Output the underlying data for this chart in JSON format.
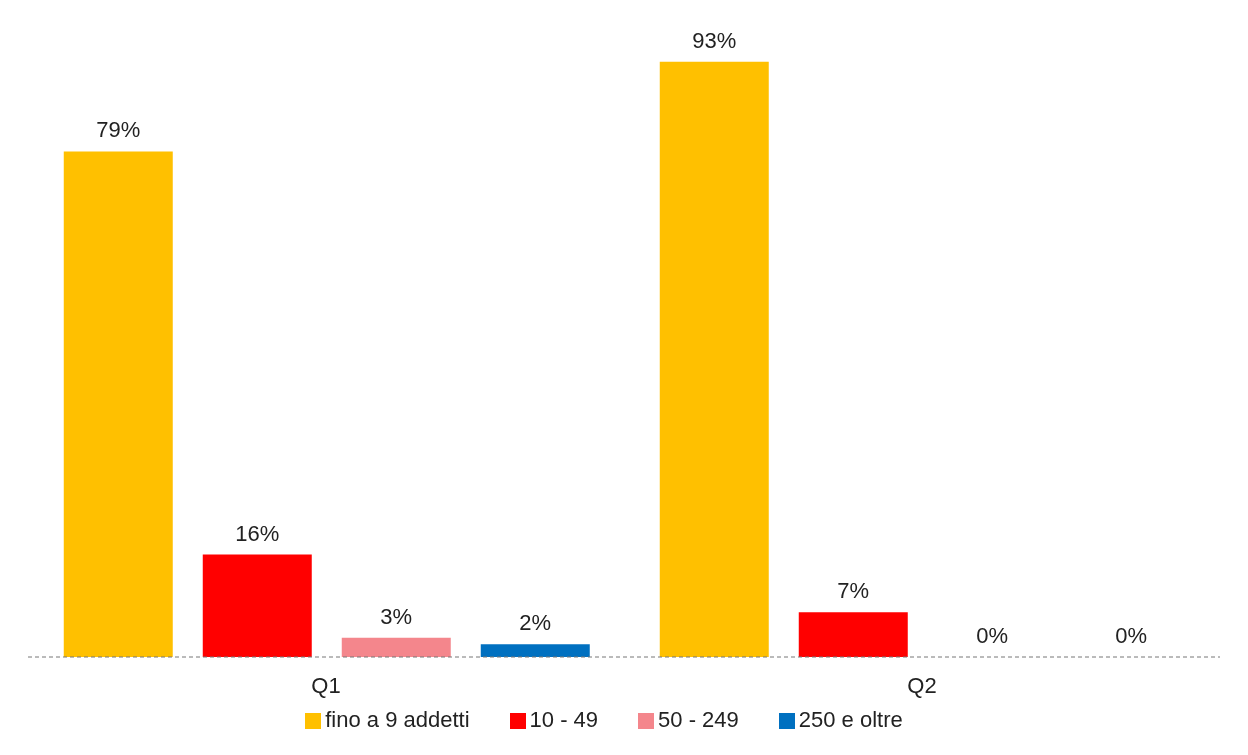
{
  "chart_data": {
    "type": "bar",
    "categories": [
      "Q1",
      "Q2"
    ],
    "series": [
      {
        "name": "fino a 9 addetti",
        "color": "#ffc000",
        "values": [
          79,
          93
        ],
        "value_labels": [
          "79%",
          "93%"
        ]
      },
      {
        "name": "10 - 49",
        "color": "#ff0000",
        "values": [
          16,
          7
        ],
        "value_labels": [
          "16%",
          "7%"
        ]
      },
      {
        "name": "50 - 249",
        "color": "#f4868c",
        "values": [
          3,
          0
        ],
        "value_labels": [
          "3%",
          "0%"
        ]
      },
      {
        "name": "250 e oltre",
        "color": "#0070c0",
        "values": [
          2,
          0
        ],
        "value_labels": [
          "2%",
          "0%"
        ]
      }
    ],
    "legend": "bottom",
    "grid": false
  }
}
